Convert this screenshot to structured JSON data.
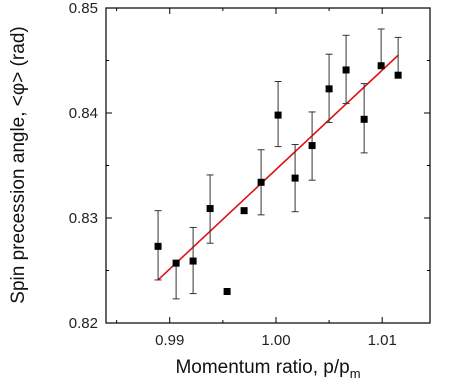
{
  "chart_data": {
    "type": "scatter",
    "xlabel": "Momentum ratio, p/p",
    "xlabel_sub": "m",
    "ylabel": "Spin precession angle, <φ> (rad)",
    "xlim": [
      0.984,
      1.0145
    ],
    "ylim": [
      0.82,
      0.85
    ],
    "x_ticks": [
      0.99,
      1.0,
      1.01
    ],
    "x_tick_labels": [
      "0.99",
      "1.00",
      "1.01"
    ],
    "y_ticks": [
      0.82,
      0.83,
      0.84,
      0.85
    ],
    "y_tick_labels": [
      "0.82",
      "0.83",
      "0.84",
      "0.85"
    ],
    "grid": false,
    "series": [
      {
        "marker": "square",
        "color": "#000000",
        "points": [
          {
            "x": 0.9889,
            "y": 0.8273,
            "yerr_low": 0.8241,
            "yerr_high": 0.8307
          },
          {
            "x": 0.9906,
            "y": 0.8257,
            "yerr_low": 0.8223,
            "yerr_high": null
          },
          {
            "x": 0.9922,
            "y": 0.8259,
            "yerr_low": 0.8228,
            "yerr_high": 0.8291
          },
          {
            "x": 0.9938,
            "y": 0.8309,
            "yerr_low": 0.8276,
            "yerr_high": 0.8341
          },
          {
            "x": 0.9954,
            "y": 0.823,
            "yerr_low": null,
            "yerr_high": null
          },
          {
            "x": 0.997,
            "y": 0.8307,
            "yerr_low": null,
            "yerr_high": null
          },
          {
            "x": 0.9986,
            "y": 0.8334,
            "yerr_low": 0.8303,
            "yerr_high": 0.8365
          },
          {
            "x": 1.0002,
            "y": 0.8398,
            "yerr_low": 0.8368,
            "yerr_high": 0.843
          },
          {
            "x": 1.0018,
            "y": 0.8338,
            "yerr_low": 0.8306,
            "yerr_high": 0.837
          },
          {
            "x": 1.0034,
            "y": 0.8369,
            "yerr_low": 0.8336,
            "yerr_high": 0.8401
          },
          {
            "x": 1.005,
            "y": 0.8423,
            "yerr_low": 0.8391,
            "yerr_high": 0.8456
          },
          {
            "x": 1.0066,
            "y": 0.8441,
            "yerr_low": 0.8409,
            "yerr_high": 0.8474
          },
          {
            "x": 1.0083,
            "y": 0.8394,
            "yerr_low": 0.8362,
            "yerr_high": 0.8428
          },
          {
            "x": 1.0099,
            "y": 0.8445,
            "yerr_low": null,
            "yerr_high": 0.848
          },
          {
            "x": 1.0115,
            "y": 0.8436,
            "yerr_low": null,
            "yerr_high": 0.8472
          }
        ]
      }
    ],
    "fit_line": {
      "type": "linear",
      "color": "#e01010",
      "x_start": 0.9889,
      "y_start": 0.8241,
      "x_end": 1.0115,
      "y_end": 0.8455
    }
  }
}
